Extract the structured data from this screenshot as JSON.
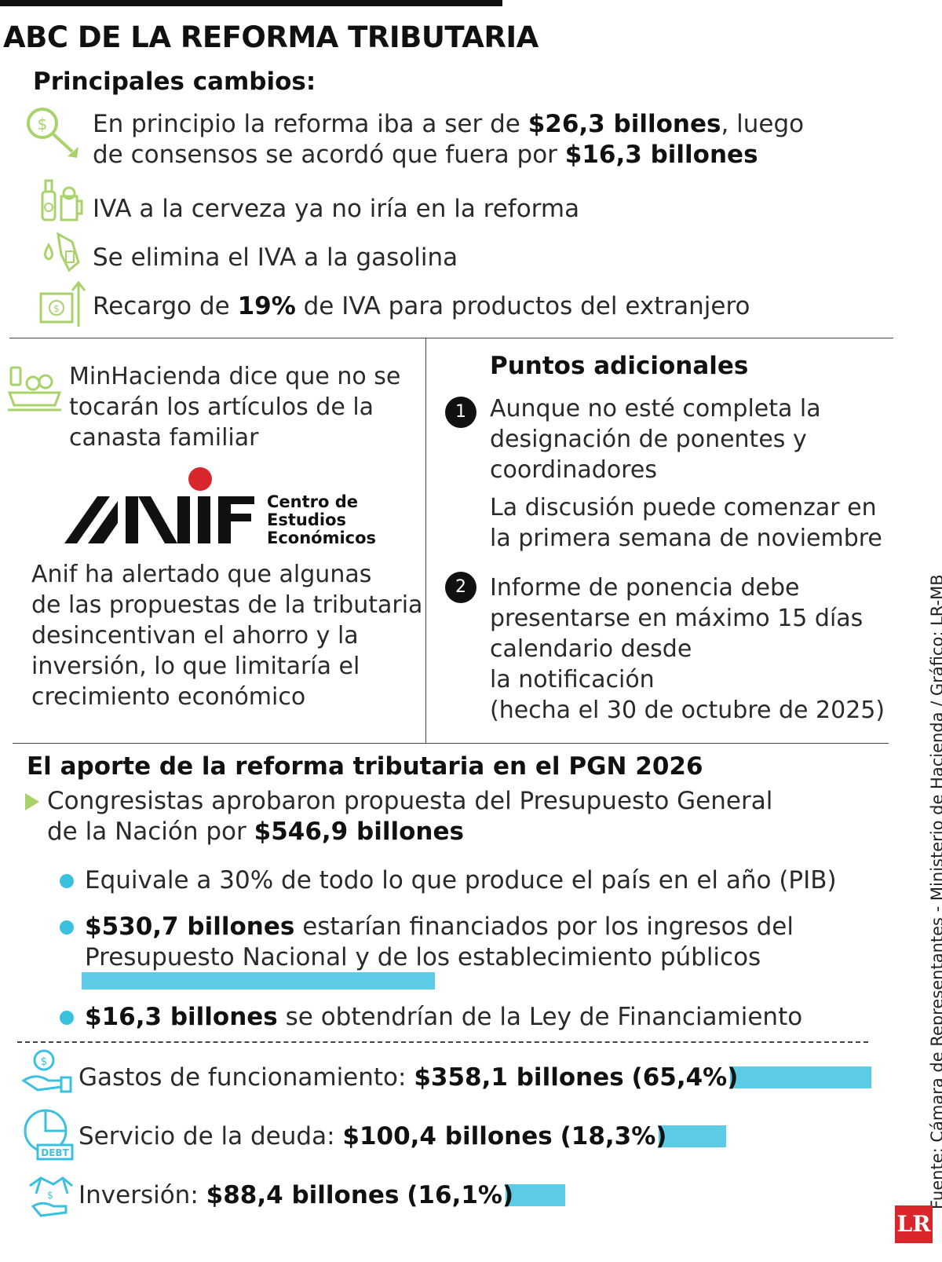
{
  "header": {
    "title": "ABC DE LA REFORMA TRIBUTARIA"
  },
  "cambios": {
    "subtitle": "Principales cambios:",
    "item1": {
      "l1a": "En principio la reforma iba a ser de ",
      "l1b": "$26,3 billones",
      "l1c": ", luego",
      "l2a": "de consensos se acordó que fuera por ",
      "l2b": "$16,3 billones",
      "icon": "money-down-icon"
    },
    "item2": {
      "text": "IVA a la cerveza ya no iría en la reforma",
      "icon": "beer-icon"
    },
    "item3": {
      "text": "Se elimina el IVA a la gasolina",
      "icon": "fuel-nozzle-icon"
    },
    "item4": {
      "a": "Recargo de ",
      "b": "19%",
      "c": " de IVA para productos del extranjero",
      "icon": "banknote-up-icon"
    }
  },
  "left_panel": {
    "canasta": {
      "l1": "MinHacienda dice que no se",
      "l2": "tocarán los artículos de la",
      "l3": "canasta familiar",
      "icon": "grocery-icon"
    },
    "anif_logo": {
      "lines": [
        "Centro de",
        "Estudios",
        "Económicos"
      ]
    },
    "anif_text": {
      "l1": "Anif ha alertado que algunas",
      "l2": "de las propuestas de la tributaria",
      "l3": "desincentivan el ahorro y la",
      "l4": "inversión, lo que limitaría el",
      "l5": "crecimiento económico"
    }
  },
  "right_panel": {
    "title": "Puntos adicionales",
    "p1": {
      "num": "1",
      "l1": "Aunque no esté completa la",
      "l2": "designación de ponentes y",
      "l3": "coordinadores",
      "l4": "La discusión puede comenzar en",
      "l5": "la primera semana de noviembre"
    },
    "p2": {
      "num": "2",
      "l1": "Informe de ponencia debe",
      "l2": "presentarse en máximo 15 días",
      "l3": "calendario desde",
      "l4": "la notificación",
      "l5": "(hecha el 30 de octubre de 2025)"
    }
  },
  "pgn": {
    "title": "El aporte de la reforma tributaria en el PGN 2026",
    "intro": {
      "l1": "Congresistas aprobaron propuesta del Presupuesto General",
      "l2a": "de la Nación por ",
      "l2b": "$546,9 billones"
    },
    "b1": "Equivale a 30% de todo lo que produce el país en el año (PIB)",
    "b2": {
      "a": "$530,7 billones",
      "b": " estarían financiados por los ingresos del",
      "c": "Presupuesto Nacional y de los establecimiento públicos"
    },
    "b3": {
      "a": "$16,3 billones",
      "b": " se obtendrían de la Ley de Financiamiento"
    }
  },
  "gastos": [
    {
      "label": "Gastos de funcionamiento: ",
      "amount": "$358,1 billones",
      "pct": "(65,4%)",
      "share": 65.4,
      "icon": "hand-coin-icon"
    },
    {
      "label": "Servicio de la deuda: ",
      "amount": "$100,4 billones",
      "pct": "(18,3%)",
      "share": 18.3,
      "icon": "debt-icon"
    },
    {
      "label": "Inversión: ",
      "amount": "$88,4 billones",
      "pct": "(16,1%)",
      "share": 16.1,
      "icon": "handshake-icon"
    }
  ],
  "colors": {
    "accent": "#5ccbe6",
    "icon_green": "#a8d26a",
    "red": "#d9262b"
  },
  "footer": {
    "source": "Fuente: Cámara de Representantes - Ministerio de Hacienda / Gráfico: LR-MB",
    "logo": "LR"
  }
}
